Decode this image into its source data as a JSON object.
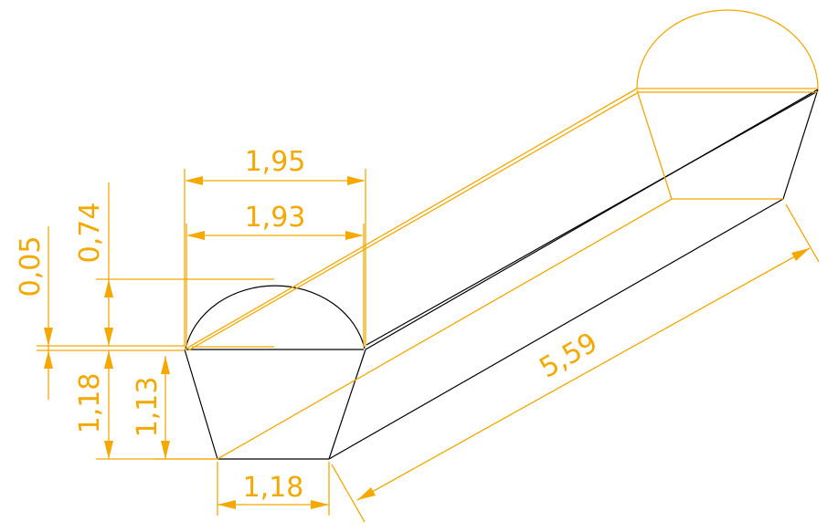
{
  "diagram": {
    "type": "technical-drawing",
    "subject": "prismatic bar with trapezoidal cross-section and circular-segment top",
    "colors": {
      "geometry": "#000000",
      "dimension": "#f5a800",
      "background": "#ffffff"
    },
    "dimensions": {
      "top_width_outer": "1,95",
      "top_width_inner": "1,93",
      "cap_height": "0,74",
      "offset": "0,05",
      "total_height": "1,18",
      "trapezoid_height": "1,13",
      "bottom_width": "1,18",
      "length": "5,59"
    }
  }
}
